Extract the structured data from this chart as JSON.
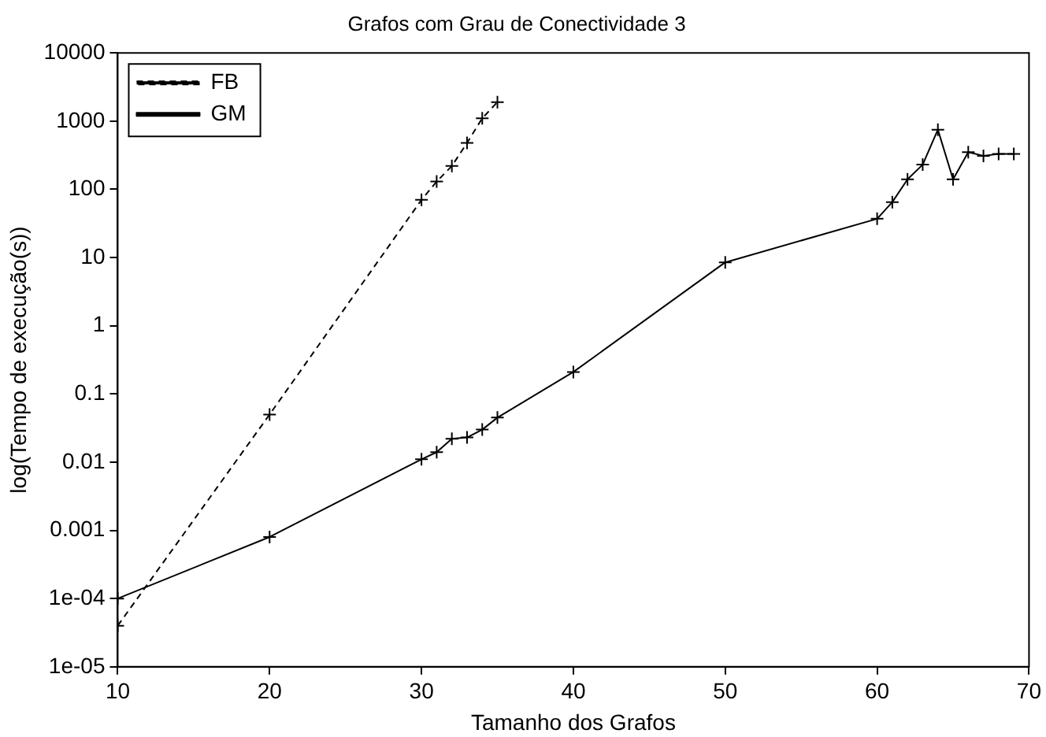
{
  "chart_data": {
    "type": "line",
    "title": "Grafos com Grau de Conectividade 3",
    "xlabel": "Tamanho dos Grafos",
    "ylabel": "log(Tempo de execução(s))",
    "log": "y",
    "grid": false,
    "legend": "top left",
    "xlim": [
      10,
      70
    ],
    "xticks": [
      10,
      20,
      30,
      40,
      50,
      60,
      70
    ],
    "ylim": [
      1e-05,
      10000
    ],
    "yticks": [
      {
        "value": 1e-05,
        "label": "1e-05"
      },
      {
        "value": 0.0001,
        "label": "1e-04"
      },
      0.001,
      0.01,
      0.1,
      1,
      10,
      100,
      1000,
      10000
    ],
    "series": [
      {
        "name": "FB",
        "color": "#000000",
        "line_style": "dashed",
        "marker": "cross",
        "x": [
          10,
          20,
          30,
          31,
          32,
          33,
          34,
          35
        ],
        "values": [
          4e-05,
          0.05,
          70,
          130,
          220,
          480,
          1100,
          1900
        ]
      },
      {
        "name": "GM",
        "color": "#000000",
        "line_style": "solid",
        "marker": "cross",
        "x": [
          10,
          20,
          30,
          31,
          32,
          33,
          34,
          35,
          40,
          50,
          60,
          61,
          62,
          63,
          64,
          65,
          66,
          67,
          68,
          69
        ],
        "values": [
          0.0001,
          0.0008,
          0.011,
          0.014,
          0.022,
          0.023,
          0.03,
          0.045,
          0.21,
          8.5,
          37,
          65,
          140,
          230,
          750,
          140,
          350,
          310,
          330,
          330
        ]
      }
    ]
  }
}
